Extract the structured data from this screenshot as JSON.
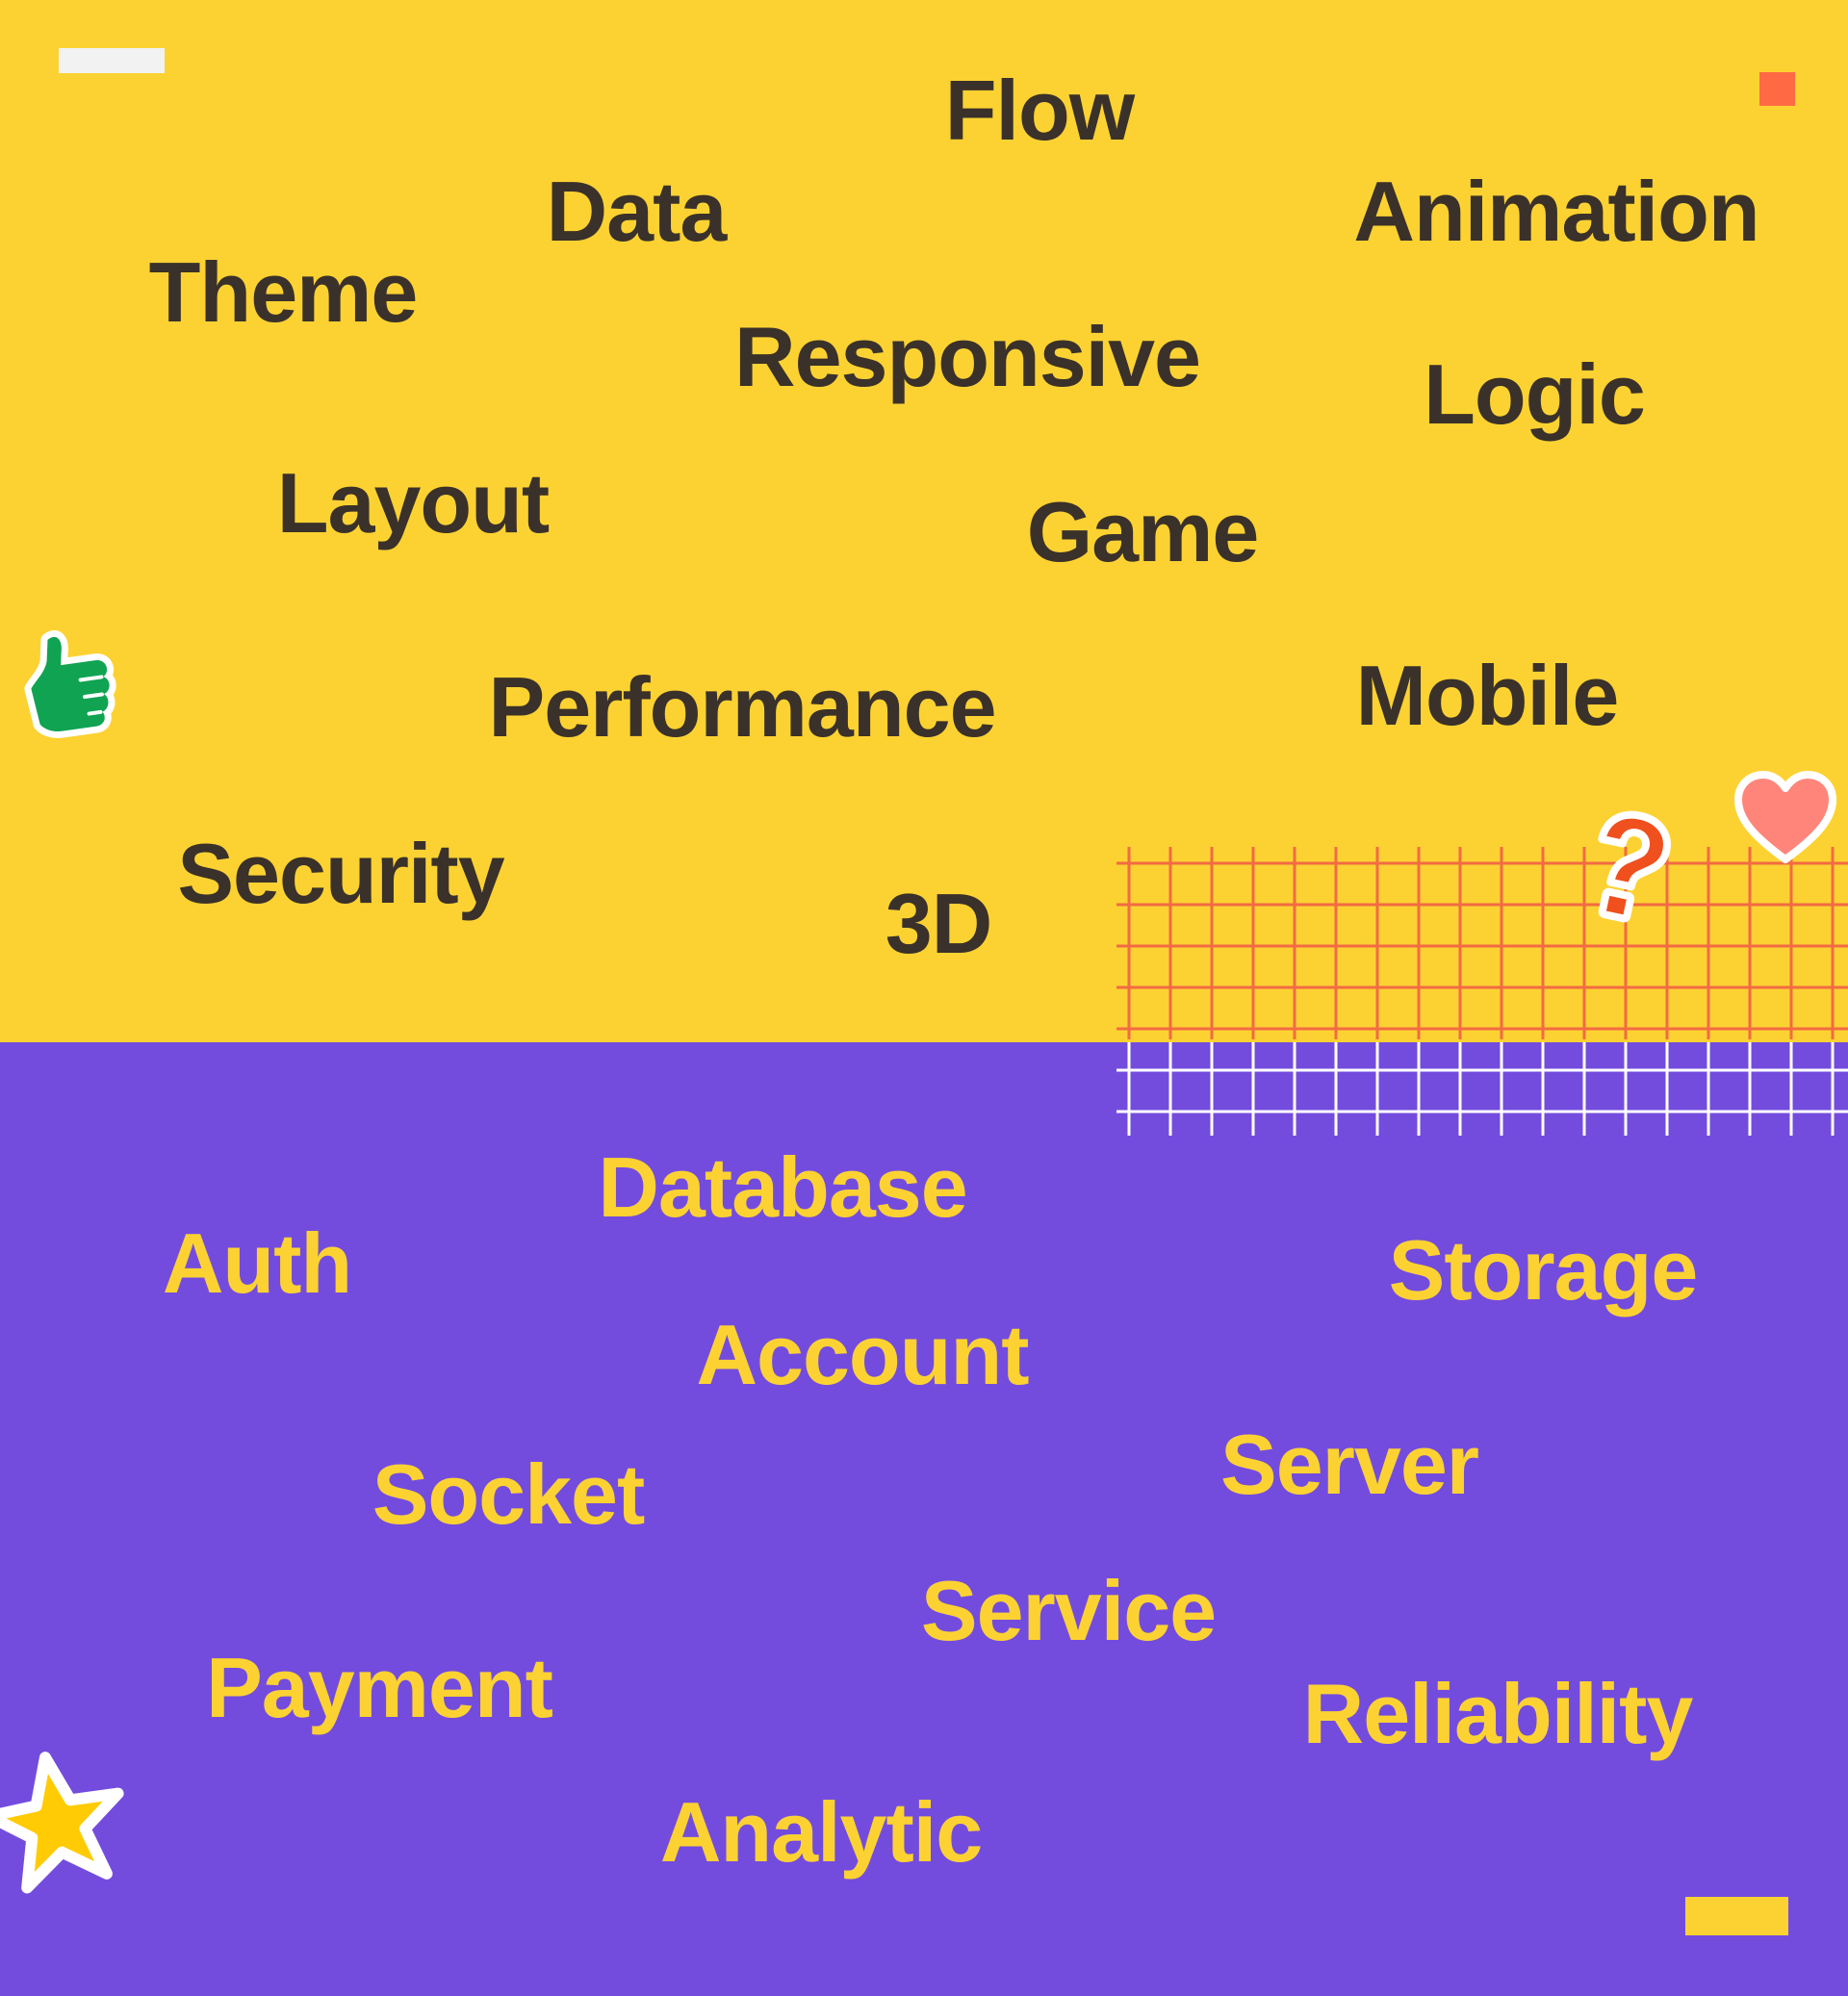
{
  "colors": {
    "top_background": "#FCD232",
    "bottom_background": "#734CDE",
    "top_text": "#3A312A",
    "bottom_text": "#FCD232",
    "grid_on_yellow": "#F26B43",
    "grid_on_purple": "#FFFFFF",
    "accent_square": "#FF6A45",
    "thumb_sticker": "#10A352",
    "heart_sticker": "#FF857A",
    "question_sticker": "#F04F1E",
    "star_sticker": "#FFCB05"
  },
  "top_words": {
    "flow": "Flow",
    "data": "Data",
    "animation": "Animation",
    "theme": "Theme",
    "responsive": "Responsive",
    "logic": "Logic",
    "layout": "Layout",
    "game": "Game",
    "performance": "Performance",
    "mobile": "Mobile",
    "security": "Security",
    "three_d": "3D"
  },
  "bottom_words": {
    "database": "Database",
    "auth": "Auth",
    "storage": "Storage",
    "account": "Account",
    "server": "Server",
    "socket": "Socket",
    "service": "Service",
    "payment": "Payment",
    "reliability": "Reliability",
    "analytic": "Analytic"
  },
  "stickers": {
    "thumb": "thumbs-up-icon",
    "heart": "heart-icon",
    "question": "question-mark-icon",
    "star": "star-icon"
  }
}
